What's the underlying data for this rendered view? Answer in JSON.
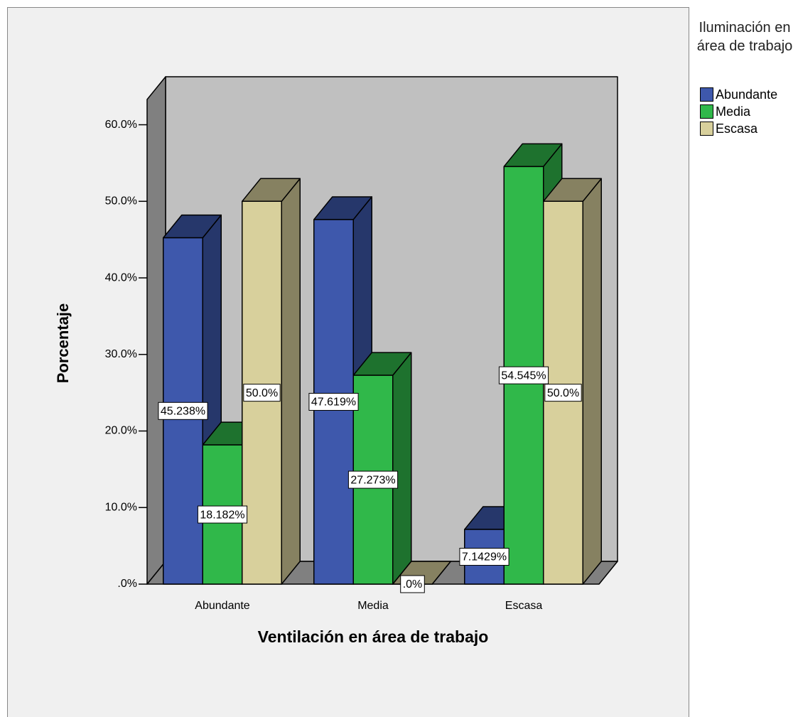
{
  "chart_data": {
    "type": "bar3d",
    "x_label": "Ventilación en área de trabajo",
    "y_label": "Porcentaje",
    "legend_title": "Iluminación en área de trabajo",
    "legend": "right",
    "categories": [
      "Abundante",
      "Media",
      "Escasa"
    ],
    "series": [
      {
        "name": "Abundante",
        "color": "#3e58ac",
        "values": [
          45.238,
          47.619,
          7.1429
        ],
        "value_labels": [
          "45.238%",
          "47.619%",
          "7.1429%"
        ]
      },
      {
        "name": "Media",
        "color": "#30b84a",
        "values": [
          18.182,
          27.273,
          54.545
        ],
        "value_labels": [
          "18.182%",
          "27.273%",
          "54.545%"
        ]
      },
      {
        "name": "Escasa",
        "color": "#d8d09c",
        "values": [
          50.0,
          0,
          50.0
        ],
        "value_labels": [
          "50.0%",
          ".0%",
          "50.0%"
        ]
      }
    ],
    "ylim": [
      0,
      63.3
    ],
    "yticks": [
      {
        "value": 0,
        "label": ".0%"
      },
      {
        "value": 10,
        "label": "10.0%"
      },
      {
        "value": 20,
        "label": "20.0%"
      },
      {
        "value": 30,
        "label": "30.0%"
      },
      {
        "value": 40,
        "label": "40.0%"
      },
      {
        "value": 50,
        "label": "50.0%"
      },
      {
        "value": 60,
        "label": "60.0%"
      }
    ]
  }
}
